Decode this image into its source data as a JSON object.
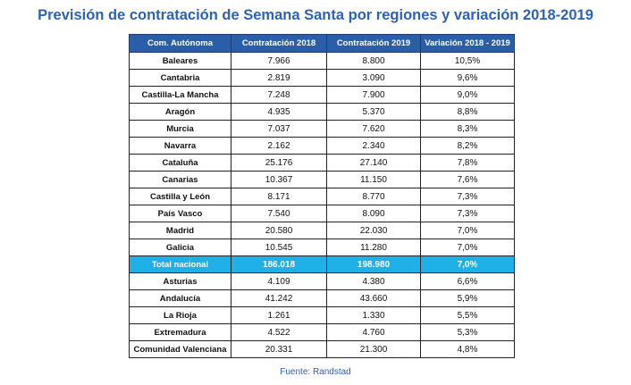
{
  "title": "Previsión de contratación de Semana Santa por regiones y variación 2018-2019",
  "table": {
    "headers": [
      "Com. Autónoma",
      "Contratación 2018",
      "Contratación 2019",
      "Variación 2018 - 2019"
    ],
    "rows": [
      [
        "Baleares",
        "7.966",
        "8.800",
        "10,5%"
      ],
      [
        "Cantabria",
        "2.819",
        "3.090",
        "9,6%"
      ],
      [
        "Castilla-La Mancha",
        "7.248",
        "7.900",
        "9,0%"
      ],
      [
        "Aragón",
        "4.935",
        "5.370",
        "8,8%"
      ],
      [
        "Murcia",
        "7.037",
        "7.620",
        "8,3%"
      ],
      [
        "Navarra",
        "2.162",
        "2.340",
        "8,2%"
      ],
      [
        "Cataluña",
        "25.176",
        "27.140",
        "7,8%"
      ],
      [
        "Canarias",
        "10.367",
        "11.150",
        "7,6%"
      ],
      [
        "Castilla y León",
        "8.171",
        "8.770",
        "7,3%"
      ],
      [
        "País Vasco",
        "7.540",
        "8.090",
        "7,3%"
      ],
      [
        "Madrid",
        "20.580",
        "22.030",
        "7,0%"
      ],
      [
        "Galicia",
        "10.545",
        "11.280",
        "7,0%"
      ],
      [
        "Total nacional",
        "186.018",
        "198.980",
        "7,0%"
      ],
      [
        "Asturias",
        "4.109",
        "4.380",
        "6,6%"
      ],
      [
        "Andalucía",
        "41.242",
        "43.660",
        "5,9%"
      ],
      [
        "La Rioja",
        "1.261",
        "1.330",
        "5,5%"
      ],
      [
        "Extremadura",
        "4.522",
        "4.760",
        "5,3%"
      ],
      [
        "Comunidad Valenciana",
        "20.331",
        "21.300",
        "4,8%"
      ]
    ],
    "total_row_index": 12,
    "colors": {
      "header_bg": "#2a5ea8",
      "total_bg": "#1eb0e6",
      "title": "#2e62b3"
    }
  },
  "source": "Fuente: Randstad"
}
